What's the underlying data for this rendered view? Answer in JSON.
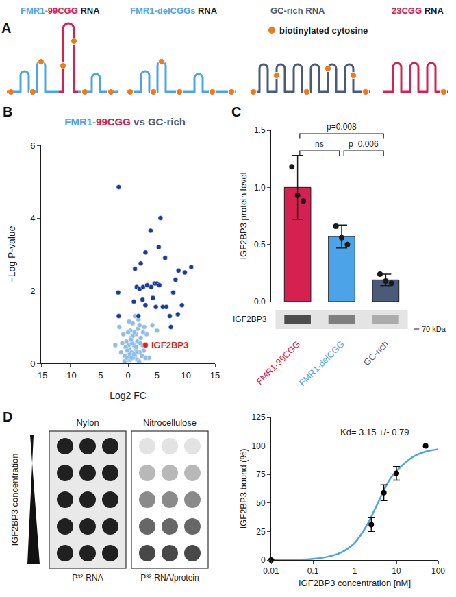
{
  "chart_data": [
    {
      "panel": "B",
      "type": "scatter",
      "title": [
        {
          "text": "FMR1-",
          "color": "#4da3e8"
        },
        {
          "text": "99CGG",
          "color": "#d6204f"
        },
        {
          "text": " vs ",
          "color": "#4a5b7a"
        },
        {
          "text": "GC-rich",
          "color": "#4a5b7a"
        }
      ],
      "x_label": "Log2 FC",
      "y_label": "−Log P-value",
      "xlim": [
        -15,
        15
      ],
      "xticks": [
        -15,
        -10,
        -5,
        0,
        5,
        10,
        15
      ],
      "ylim": [
        0,
        6
      ],
      "yticks": [
        0,
        2,
        4,
        6
      ],
      "grid": false,
      "series": [
        {
          "color": "#8fbde6",
          "x": [
            -2.2,
            -1.5,
            -1.2,
            -0.8,
            -0.5,
            -0.3,
            0,
            0.2,
            0.4,
            0.6,
            0.8,
            1.0,
            1.2,
            1.4,
            1.6,
            1.8,
            2.0,
            2.2,
            2.5,
            2.8,
            3.2,
            3.6,
            4.2,
            5.0,
            -0.6,
            -0.2,
            0.1,
            0.3,
            0.5,
            0.7,
            0.9,
            1.1,
            1.3,
            1.5,
            1.7,
            2.1,
            2.4,
            2.7,
            3.0,
            -1.0,
            -0.4,
            0.0,
            0.4,
            0.8,
            1.2,
            1.6,
            2.0,
            2.6,
            0.2,
            0.6,
            1.0,
            1.4,
            -0.1,
            0.5,
            1.9
          ],
          "values": [
            0.5,
            1.0,
            0.3,
            0.8,
            0.2,
            0.6,
            0.1,
            0.4,
            0.9,
            0.3,
            1.1,
            0.5,
            0.2,
            0.8,
            0.6,
            1.2,
            0.3,
            0.7,
            0.5,
            1.0,
            0.8,
            0.15,
            1.05,
            0.9,
            0.05,
            0.15,
            0.5,
            0.25,
            0.7,
            0.55,
            0.15,
            0.85,
            0.4,
            0.3,
            0.95,
            0.55,
            0.2,
            0.35,
            0.15,
            0.55,
            0.45,
            0.85,
            0.1,
            0.75,
            1.3,
            0.1,
            1.05,
            0.85,
            1.15,
            0.15,
            0.25,
            0.45,
            0.35,
            0.65,
            0.05
          ]
        },
        {
          "color": "#1a3a9c",
          "x": [
            -1.6,
            -1.7,
            -1.6,
            1.2,
            1.5,
            2.0,
            2.2,
            2.6,
            3.0,
            3.3,
            3.9,
            4.0,
            4.6,
            5.0,
            5.3,
            5.4,
            5.6,
            6.4,
            2.5,
            3.0,
            4.3,
            4.8,
            6.0,
            6.6,
            7.2,
            7.8,
            8.2,
            8.6,
            8.7,
            9.3,
            9.8,
            10.9,
            1.8,
            1.0,
            7.4
          ],
          "values": [
            4.85,
            1.95,
            1.3,
            2.6,
            2.1,
            2.05,
            2.75,
            2.1,
            3.05,
            2.15,
            3.65,
            2.1,
            2.2,
            2.2,
            3.2,
            2.15,
            4.0,
            2.9,
            1.75,
            1.6,
            1.8,
            1.55,
            1.55,
            1.55,
            1.3,
            1.95,
            2.3,
            1.35,
            2.55,
            1.6,
            2.5,
            2.65,
            1.3,
            1.7,
            1.0
          ]
        },
        {
          "name": "IGF2BP3",
          "color": "#e0201f",
          "x": [
            3.0
          ],
          "values": [
            0.5
          ]
        }
      ]
    },
    {
      "panel": "C",
      "type": "bar",
      "categories": [
        "FMR1-99CGG",
        "FMR1-delCGG",
        "GC-rich"
      ],
      "values": [
        1.0,
        0.57,
        0.19
      ],
      "errors": [
        0.28,
        0.1,
        0.05
      ],
      "replicates": [
        [
          1.18,
          0.93,
          0.88
        ],
        [
          0.66,
          0.56,
          0.5
        ],
        [
          0.24,
          0.18,
          0.16
        ]
      ],
      "colors": [
        "#d6204f",
        "#4da3e8",
        "#4a5b7a"
      ],
      "y_label": "IGF2BP3 protein level",
      "ylim": [
        0,
        1.5
      ],
      "yticks": [
        {
          "value": 0,
          "label": "0.0"
        },
        {
          "value": 0.5,
          "label": "0.5"
        },
        {
          "value": 1,
          "label": "1.0"
        },
        {
          "value": 1.5,
          "label": "1.5"
        }
      ],
      "grid": false,
      "comparisons": [
        {
          "from": 0,
          "to": 2,
          "label": "p=0.008"
        },
        {
          "from": 0,
          "to": 1,
          "label": "ns"
        },
        {
          "from": 1,
          "to": 2,
          "label": "p=0.006"
        }
      ],
      "blot_label": "IGF2BP3",
      "size_label": "70 kDa"
    },
    {
      "type": "scatter",
      "log": "x",
      "grid": false,
      "x_label": "IGF2BP3 concentration [nM]",
      "y_label": "IGF2BP3 bound (%)",
      "xlim": [
        0.01,
        100
      ],
      "xticks": [
        0.01,
        0.1,
        1,
        10,
        100
      ],
      "ylim": [
        0,
        125
      ],
      "yticks": [
        0,
        25,
        50,
        75,
        100,
        125
      ],
      "series": [
        {
          "type": "line",
          "color": "#4da3e8",
          "x": [
            0.01,
            0.1,
            0.3,
            0.5,
            1,
            2,
            3,
            5,
            7,
            10,
            20,
            30,
            50,
            100
          ],
          "values": [
            0,
            1,
            4,
            7,
            15,
            31,
            44,
            61,
            71,
            78,
            88,
            92,
            95,
            97
          ]
        },
        {
          "type": "scatter",
          "color": "#000000",
          "x": [
            0.01,
            2.5,
            5,
            10,
            50
          ],
          "values": [
            0,
            31,
            59,
            76,
            100
          ],
          "errors": [
            0,
            6,
            7,
            6,
            0
          ]
        }
      ],
      "annotations": [
        {
          "text": "Kd= 3.15 +/- 0.79",
          "x": 3,
          "y": 112
        }
      ]
    }
  ],
  "diagram": {
    "panel": "A",
    "rnas": [
      {
        "label": [
          {
            "text": "FMR1-",
            "color": "#4da3e8"
          },
          {
            "text": "99CGG",
            "color": "#d6204f"
          },
          {
            "text": " RNA",
            "color": "#1a1a1a"
          }
        ]
      },
      {
        "label": [
          {
            "text": "FMR1-delCGGs",
            "color": "#4da3e8"
          },
          {
            "text": " RNA",
            "color": "#1a1a1a"
          }
        ]
      },
      {
        "label": [
          {
            "text": "GC-rich RNA",
            "color": "#4a5b7a"
          }
        ]
      },
      {
        "label": [
          {
            "text": "23CGG",
            "color": "#d6204f"
          },
          {
            "text": " RNA",
            "color": "#1a1a1a"
          }
        ]
      }
    ],
    "key": {
      "color": "#f07a1a",
      "text": "biotinylated cytosine"
    }
  },
  "blot": {
    "panel": "D",
    "membranes": [
      {
        "title": "Nylon",
        "label": "P³²-RNA"
      },
      {
        "title": "Nitrocellulose",
        "label": "P³²-RNA/protein"
      }
    ],
    "gradient_label": "IGF2BP3 concentration"
  }
}
